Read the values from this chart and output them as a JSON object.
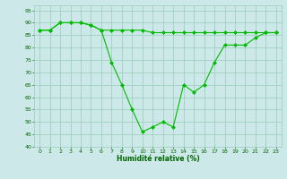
{
  "line1_x": [
    0,
    1,
    2,
    3,
    4,
    5,
    6,
    7,
    8,
    9,
    10,
    11,
    12,
    13,
    14,
    15,
    16,
    17,
    18,
    19,
    20,
    21,
    22,
    23
  ],
  "line1_y": [
    87,
    87,
    90,
    90,
    90,
    89,
    87,
    87,
    87,
    87,
    87,
    86,
    86,
    86,
    86,
    86,
    86,
    86,
    86,
    86,
    86,
    86,
    86,
    86
  ],
  "line2_x": [
    0,
    1,
    2,
    3,
    4,
    5,
    6,
    7,
    8,
    9,
    10,
    11,
    12,
    13,
    14,
    15,
    16,
    17,
    18,
    19,
    20,
    21,
    22,
    23
  ],
  "line2_y": [
    87,
    87,
    90,
    90,
    90,
    89,
    87,
    74,
    65,
    55,
    46,
    48,
    50,
    48,
    65,
    62,
    65,
    74,
    81,
    81,
    81,
    84,
    86,
    86
  ],
  "line_color": "#00bb00",
  "marker": "D",
  "marker_size": 2,
  "xlabel": "Humidité relative (%)",
  "xlim": [
    -0.5,
    23.5
  ],
  "ylim": [
    40,
    97
  ],
  "yticks": [
    40,
    45,
    50,
    55,
    60,
    65,
    70,
    75,
    80,
    85,
    90,
    95
  ],
  "xticks": [
    0,
    1,
    2,
    3,
    4,
    5,
    6,
    7,
    8,
    9,
    10,
    11,
    12,
    13,
    14,
    15,
    16,
    17,
    18,
    19,
    20,
    21,
    22,
    23
  ],
  "bg_color": "#cce8e8",
  "grid_color": "#99ccbb",
  "label_color": "#006600"
}
